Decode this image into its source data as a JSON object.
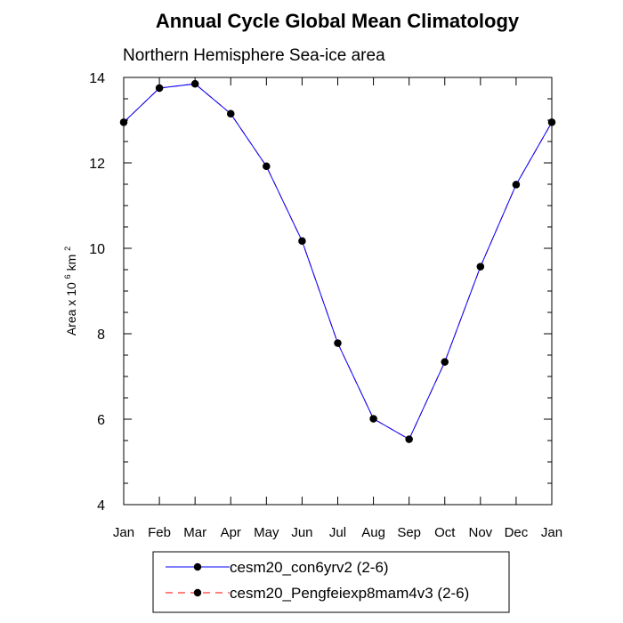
{
  "chart_data": {
    "type": "line",
    "title": "Annual Cycle Global Mean Climatology",
    "subtitle": "Northern Hemisphere Sea-ice area",
    "ylabel_prefix": "Area x 10",
    "ylabel_exp": "6",
    "ylabel_unit": " km",
    "ylabel_unit_exp": "2",
    "categories": [
      "Jan",
      "Feb",
      "Mar",
      "Apr",
      "May",
      "Jun",
      "Jul",
      "Aug",
      "Sep",
      "Oct",
      "Nov",
      "Dec",
      "Jan"
    ],
    "ylim": [
      4,
      14
    ],
    "yticks": [
      4,
      6,
      8,
      10,
      12,
      14
    ],
    "grid": false,
    "series": [
      {
        "name": "cesm20_con6yrv2 (2-6)",
        "color": "#0000ff",
        "dash": "solid",
        "values": [
          12.95,
          13.75,
          13.85,
          13.15,
          11.92,
          10.17,
          7.78,
          6.01,
          5.53,
          7.34,
          9.57,
          11.49,
          12.95
        ]
      },
      {
        "name": "cesm20_Pengfeiexp8mam4v3 (2-6)",
        "color": "#ff0000",
        "dash": "dashed",
        "values": [
          12.95,
          13.75,
          13.85,
          13.15,
          11.92,
          10.17,
          7.78,
          6.01,
          5.53,
          7.34,
          9.57,
          11.49,
          12.95
        ]
      }
    ],
    "legend_position": "bottom-center"
  }
}
